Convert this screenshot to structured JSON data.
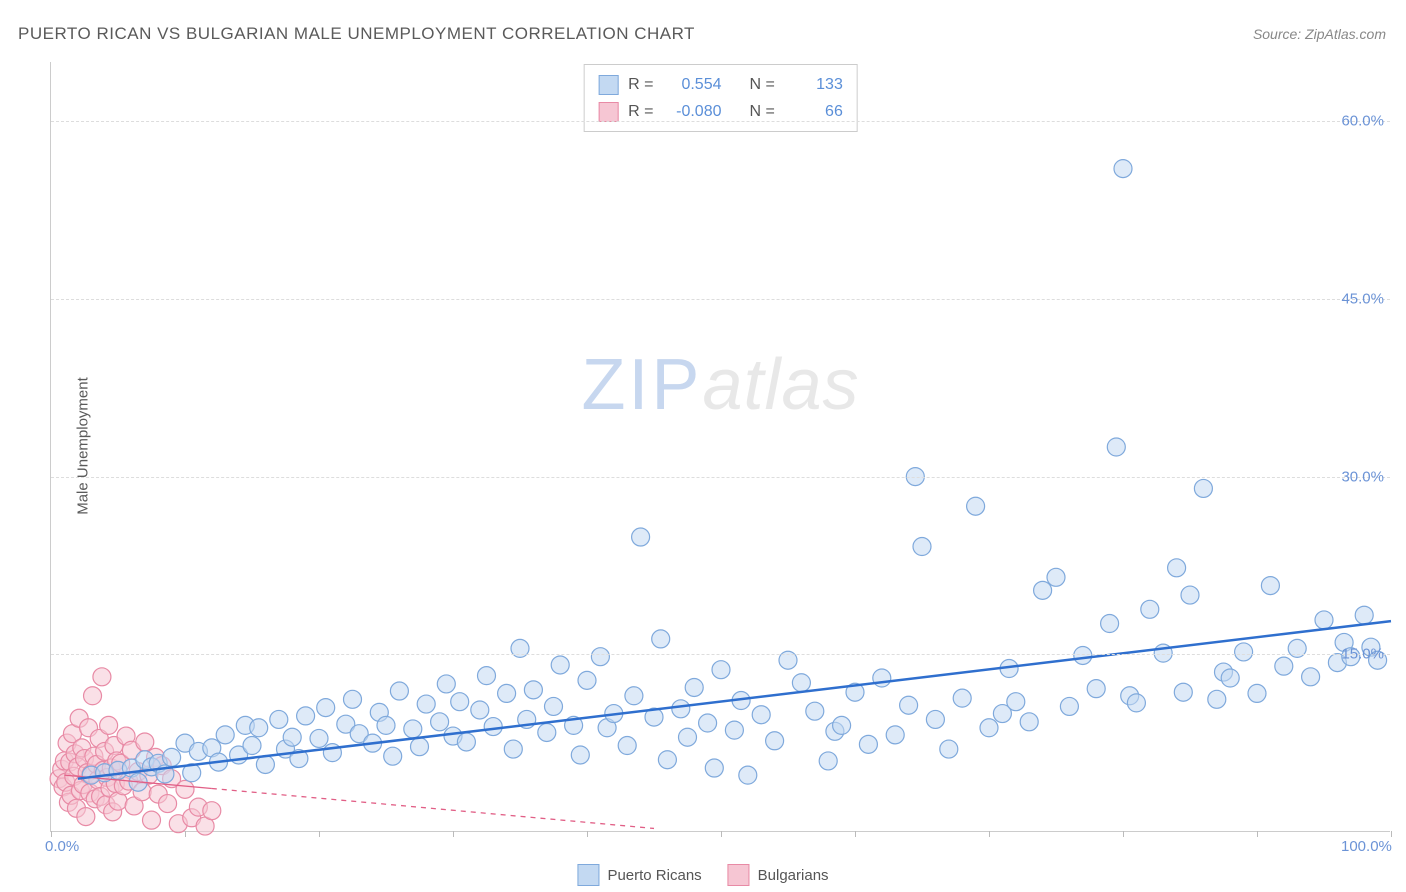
{
  "title": "PUERTO RICAN VS BULGARIAN MALE UNEMPLOYMENT CORRELATION CHART",
  "source": "Source: ZipAtlas.com",
  "watermark_a": "ZIP",
  "watermark_b": "atlas",
  "ylabel": "Male Unemployment",
  "chart": {
    "type": "scatter",
    "xlim": [
      0,
      100
    ],
    "ylim": [
      0,
      65
    ],
    "yticks": [
      15.0,
      30.0,
      45.0,
      60.0
    ],
    "ytick_labels": [
      "15.0%",
      "30.0%",
      "45.0%",
      "60.0%"
    ],
    "xticks": [
      0,
      10,
      20,
      30,
      40,
      50,
      60,
      70,
      80,
      90,
      100
    ],
    "xtick_labels_shown": {
      "0": "0.0%",
      "100": "100.0%"
    },
    "background_color": "#ffffff",
    "grid_color": "#dddddd",
    "axis_color": "#cccccc",
    "ytick_color": "#6b93d6",
    "marker_radius": 9,
    "marker_stroke_width": 1.2,
    "series": {
      "pr": {
        "label": "Puerto Ricans",
        "fill": "#c3d9f2",
        "stroke": "#7fa9dc",
        "fill_opacity": 0.55,
        "trend": {
          "x1": 2,
          "y1": 4.5,
          "x2": 100,
          "y2": 17.8,
          "stroke": "#2f6fce",
          "width": 2.5,
          "dash": ""
        },
        "stats": {
          "R": "0.554",
          "N": "133"
        },
        "points": [
          [
            3,
            4.8
          ],
          [
            4,
            5
          ],
          [
            5,
            5.2
          ],
          [
            6,
            5.4
          ],
          [
            6.5,
            4.2
          ],
          [
            7,
            6.1
          ],
          [
            7.5,
            5.5
          ],
          [
            8,
            5.8
          ],
          [
            8.5,
            4.9
          ],
          [
            9,
            6.3
          ],
          [
            10,
            7.5
          ],
          [
            10.5,
            5.0
          ],
          [
            11,
            6.8
          ],
          [
            12,
            7.1
          ],
          [
            12.5,
            5.9
          ],
          [
            13,
            8.2
          ],
          [
            14,
            6.5
          ],
          [
            14.5,
            9.0
          ],
          [
            15,
            7.3
          ],
          [
            15.5,
            8.8
          ],
          [
            16,
            5.7
          ],
          [
            17,
            9.5
          ],
          [
            17.5,
            7.0
          ],
          [
            18,
            8.0
          ],
          [
            18.5,
            6.2
          ],
          [
            19,
            9.8
          ],
          [
            20,
            7.9
          ],
          [
            20.5,
            10.5
          ],
          [
            21,
            6.7
          ],
          [
            22,
            9.1
          ],
          [
            22.5,
            11.2
          ],
          [
            23,
            8.3
          ],
          [
            24,
            7.5
          ],
          [
            24.5,
            10.1
          ],
          [
            25,
            9.0
          ],
          [
            25.5,
            6.4
          ],
          [
            26,
            11.9
          ],
          [
            27,
            8.7
          ],
          [
            27.5,
            7.2
          ],
          [
            28,
            10.8
          ],
          [
            29,
            9.3
          ],
          [
            29.5,
            12.5
          ],
          [
            30,
            8.1
          ],
          [
            30.5,
            11.0
          ],
          [
            31,
            7.6
          ],
          [
            32,
            10.3
          ],
          [
            32.5,
            13.2
          ],
          [
            33,
            8.9
          ],
          [
            34,
            11.7
          ],
          [
            34.5,
            7.0
          ],
          [
            35,
            15.5
          ],
          [
            35.5,
            9.5
          ],
          [
            36,
            12.0
          ],
          [
            37,
            8.4
          ],
          [
            37.5,
            10.6
          ],
          [
            38,
            14.1
          ],
          [
            39,
            9.0
          ],
          [
            39.5,
            6.5
          ],
          [
            40,
            12.8
          ],
          [
            41,
            14.8
          ],
          [
            41.5,
            8.8
          ],
          [
            42,
            10.0
          ],
          [
            43,
            7.3
          ],
          [
            43.5,
            11.5
          ],
          [
            44,
            24.9
          ],
          [
            45,
            9.7
          ],
          [
            45.5,
            16.3
          ],
          [
            46,
            6.1
          ],
          [
            47,
            10.4
          ],
          [
            47.5,
            8.0
          ],
          [
            48,
            12.2
          ],
          [
            49,
            9.2
          ],
          [
            49.5,
            5.4
          ],
          [
            50,
            13.7
          ],
          [
            51,
            8.6
          ],
          [
            51.5,
            11.1
          ],
          [
            52,
            4.8
          ],
          [
            53,
            9.9
          ],
          [
            54,
            7.7
          ],
          [
            55,
            14.5
          ],
          [
            56,
            12.6
          ],
          [
            57,
            10.2
          ],
          [
            58,
            6.0
          ],
          [
            58.5,
            8.5
          ],
          [
            59,
            9.0
          ],
          [
            60,
            11.8
          ],
          [
            61,
            7.4
          ],
          [
            62,
            13.0
          ],
          [
            63,
            8.2
          ],
          [
            64,
            10.7
          ],
          [
            64.5,
            30.0
          ],
          [
            65,
            24.1
          ],
          [
            66,
            9.5
          ],
          [
            67,
            7.0
          ],
          [
            68,
            11.3
          ],
          [
            69,
            27.5
          ],
          [
            70,
            8.8
          ],
          [
            71,
            10.0
          ],
          [
            71.5,
            13.8
          ],
          [
            72,
            11.0
          ],
          [
            73,
            9.3
          ],
          [
            74,
            20.4
          ],
          [
            75,
            21.5
          ],
          [
            76,
            10.6
          ],
          [
            77,
            14.9
          ],
          [
            78,
            12.1
          ],
          [
            79,
            17.6
          ],
          [
            79.5,
            32.5
          ],
          [
            80,
            56.0
          ],
          [
            80.5,
            11.5
          ],
          [
            81,
            10.9
          ],
          [
            82,
            18.8
          ],
          [
            83,
            15.1
          ],
          [
            84,
            22.3
          ],
          [
            84.5,
            11.8
          ],
          [
            85,
            20.0
          ],
          [
            86,
            29.0
          ],
          [
            87,
            11.2
          ],
          [
            87.5,
            13.5
          ],
          [
            88,
            13.0
          ],
          [
            89,
            15.2
          ],
          [
            90,
            11.7
          ],
          [
            91,
            20.8
          ],
          [
            92,
            14.0
          ],
          [
            93,
            15.5
          ],
          [
            94,
            13.1
          ],
          [
            95,
            17.9
          ],
          [
            96,
            14.3
          ],
          [
            96.5,
            16.0
          ],
          [
            97,
            14.8
          ],
          [
            98,
            18.3
          ],
          [
            98.5,
            15.6
          ],
          [
            99,
            14.5
          ]
        ]
      },
      "bg": {
        "label": "Bulgarians",
        "fill": "#f6c6d3",
        "stroke": "#e88aa5",
        "fill_opacity": 0.55,
        "trend": {
          "x1": 1,
          "y1": 4.8,
          "x2": 45,
          "y2": 0.3,
          "stroke": "#e15f86",
          "width": 1.3,
          "dash": "5,5",
          "solid_until_x": 12
        },
        "stats": {
          "R": "-0.080",
          "N": "66"
        },
        "points": [
          [
            0.6,
            4.5
          ],
          [
            0.8,
            5.3
          ],
          [
            0.9,
            3.8
          ],
          [
            1.0,
            6.0
          ],
          [
            1.1,
            4.2
          ],
          [
            1.2,
            7.5
          ],
          [
            1.3,
            2.5
          ],
          [
            1.4,
            5.9
          ],
          [
            1.5,
            3.1
          ],
          [
            1.6,
            8.3
          ],
          [
            1.7,
            4.7
          ],
          [
            1.8,
            6.6
          ],
          [
            1.9,
            2.0
          ],
          [
            2.0,
            5.5
          ],
          [
            2.1,
            9.6
          ],
          [
            2.2,
            3.5
          ],
          [
            2.3,
            7.1
          ],
          [
            2.4,
            4.0
          ],
          [
            2.5,
            6.2
          ],
          [
            2.6,
            1.3
          ],
          [
            2.7,
            5.0
          ],
          [
            2.8,
            8.8
          ],
          [
            2.9,
            3.3
          ],
          [
            3.0,
            4.9
          ],
          [
            3.1,
            11.5
          ],
          [
            3.2,
            6.4
          ],
          [
            3.3,
            2.8
          ],
          [
            3.4,
            5.7
          ],
          [
            3.5,
            4.4
          ],
          [
            3.6,
            7.9
          ],
          [
            3.7,
            3.0
          ],
          [
            3.8,
            13.1
          ],
          [
            3.9,
            5.2
          ],
          [
            4.0,
            6.8
          ],
          [
            4.1,
            2.3
          ],
          [
            4.2,
            4.6
          ],
          [
            4.3,
            9.0
          ],
          [
            4.4,
            3.7
          ],
          [
            4.5,
            5.4
          ],
          [
            4.6,
            1.7
          ],
          [
            4.7,
            7.3
          ],
          [
            4.8,
            4.1
          ],
          [
            4.9,
            6.0
          ],
          [
            5.0,
            2.6
          ],
          [
            5.2,
            5.8
          ],
          [
            5.4,
            3.9
          ],
          [
            5.6,
            8.1
          ],
          [
            5.8,
            4.3
          ],
          [
            6.0,
            6.9
          ],
          [
            6.2,
            2.2
          ],
          [
            6.5,
            5.1
          ],
          [
            6.8,
            3.4
          ],
          [
            7.0,
            7.6
          ],
          [
            7.3,
            4.8
          ],
          [
            7.5,
            1.0
          ],
          [
            7.8,
            6.3
          ],
          [
            8.0,
            3.2
          ],
          [
            8.3,
            5.6
          ],
          [
            8.7,
            2.4
          ],
          [
            9.0,
            4.5
          ],
          [
            9.5,
            0.7
          ],
          [
            10.0,
            3.6
          ],
          [
            10.5,
            1.2
          ],
          [
            11.0,
            2.1
          ],
          [
            11.5,
            0.5
          ],
          [
            12.0,
            1.8
          ]
        ]
      }
    },
    "stat_box": {
      "r_label": "R =",
      "n_label": "N ="
    }
  },
  "legend": {
    "pr": "Puerto Ricans",
    "bg": "Bulgarians"
  }
}
